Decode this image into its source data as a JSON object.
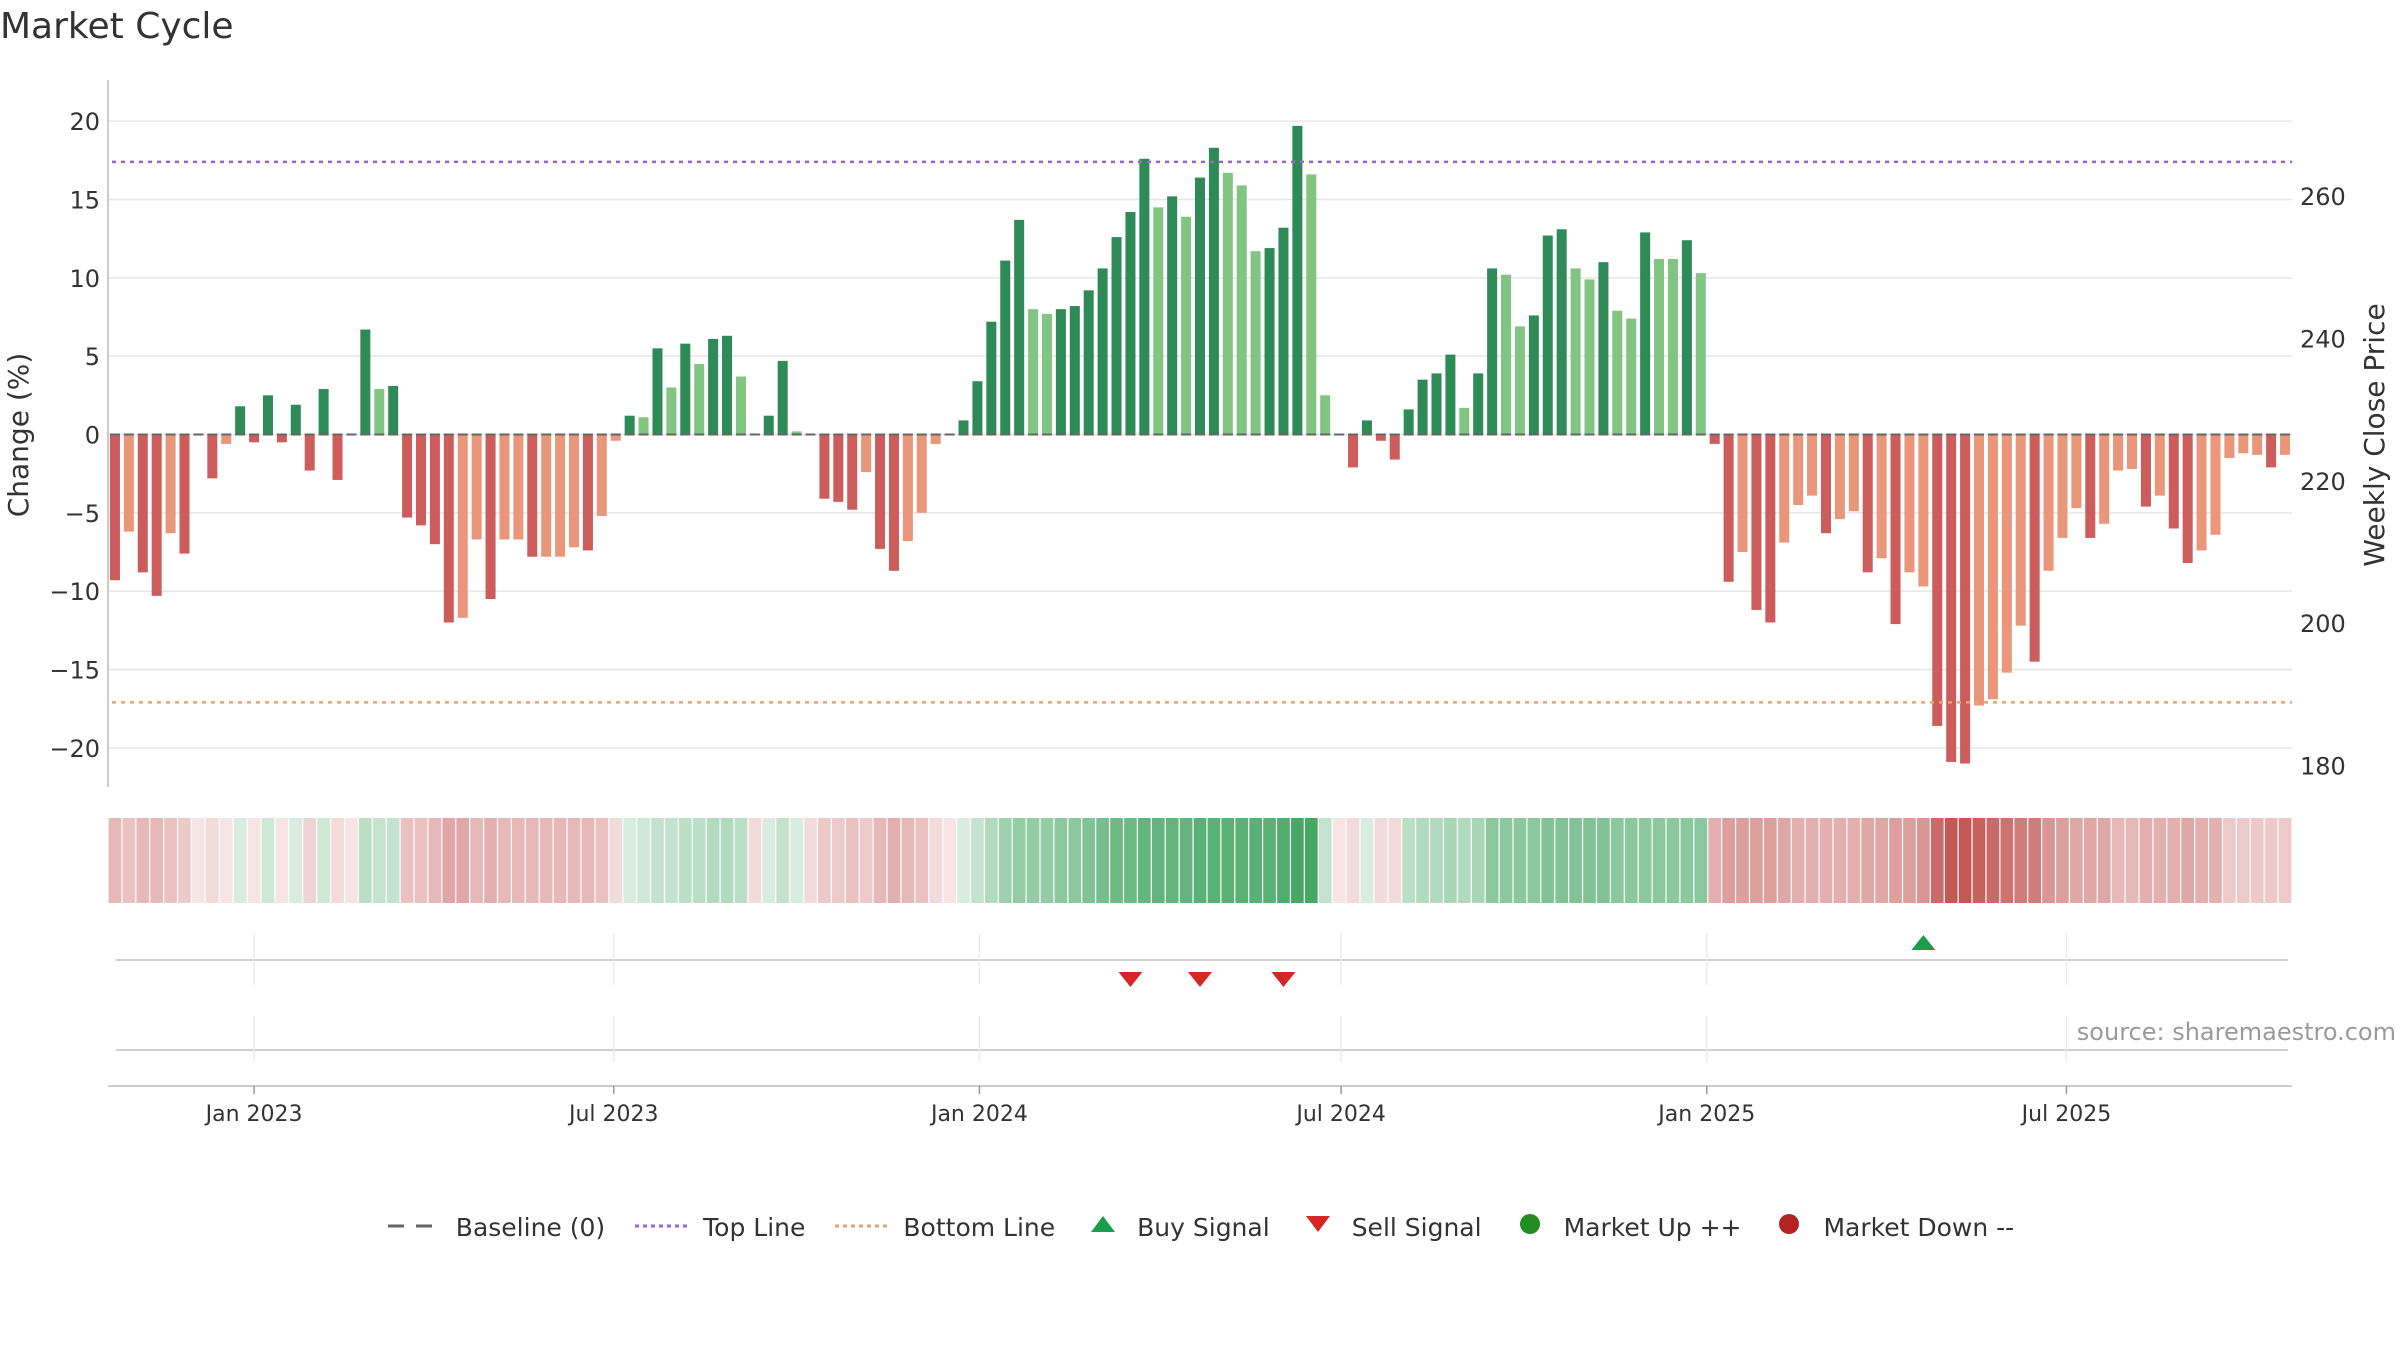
{
  "title": "Market Cycle",
  "source": "source: sharemaestro.com",
  "colors": {
    "dark_green": "#2e8b57",
    "light_green": "#82c482",
    "dark_red": "#cd5c5c",
    "light_red": "#e9967a",
    "top_line": "#9966cc",
    "bottom_line": "#e8a66a",
    "buy": "#1a9e4a",
    "sell": "#d62728",
    "market_up": "#228b22",
    "market_down": "#b22222"
  },
  "legend": [
    {
      "label": "Baseline (0)",
      "icon": "baseline-dash"
    },
    {
      "label": "Top Line",
      "icon": "top-line-dotted"
    },
    {
      "label": "Bottom Line",
      "icon": "bottom-line-dotted"
    },
    {
      "label": "Buy Signal",
      "icon": "triangle-up"
    },
    {
      "label": "Sell Signal",
      "icon": "triangle-down"
    },
    {
      "label": "Market Up ++",
      "icon": "circle-green"
    },
    {
      "label": "Market Down --",
      "icon": "circle-red"
    }
  ],
  "chart_data": {
    "type": "bar",
    "ylabel": "Change (%)",
    "y2label": "Weekly Close Price",
    "ylim": [
      -22.5,
      22.5
    ],
    "yticks": [
      20,
      15,
      10,
      5,
      0,
      -5,
      -10,
      -15,
      -20
    ],
    "ytick_labels": [
      "20",
      "15",
      "10",
      "5",
      "0",
      "−5",
      "−10",
      "−15",
      "−20"
    ],
    "y2ticks": [
      260,
      240,
      220,
      200,
      180
    ],
    "y2lim": [
      177,
      276
    ],
    "top_line": 17.4,
    "bottom_line": -17.1,
    "x_start": "2022-10-23",
    "week_days": 7,
    "xticks": [
      {
        "label": "Jan 2023",
        "date": "2023-01-01"
      },
      {
        "label": "Jul 2023",
        "date": "2023-07-01"
      },
      {
        "label": "Jan 2024",
        "date": "2024-01-01"
      },
      {
        "label": "Jul 2024",
        "date": "2024-07-01"
      },
      {
        "label": "Jan 2025",
        "date": "2025-01-01"
      },
      {
        "label": "Jul 2025",
        "date": "2025-07-01"
      }
    ],
    "grid": true,
    "legend_position": "bottom",
    "values": [
      -9.3,
      -6.2,
      -8.8,
      -10.3,
      -6.3,
      -7.6,
      0,
      -2.8,
      -0.6,
      1.8,
      -0.5,
      2.5,
      -0.5,
      1.9,
      -2.3,
      2.9,
      -2.9,
      0,
      6.7,
      2.9,
      3.1,
      -5.3,
      -5.8,
      -7.0,
      -12.0,
      -11.7,
      -6.7,
      -10.5,
      -6.7,
      -6.7,
      -7.8,
      -7.8,
      -7.8,
      -7.2,
      -7.4,
      -5.2,
      -0.4,
      1.2,
      1.1,
      5.5,
      3.0,
      5.8,
      4.5,
      6.1,
      6.3,
      3.7,
      0,
      1.2,
      4.7,
      0.2,
      0,
      -4.1,
      -4.3,
      -4.8,
      -2.4,
      -7.3,
      -8.7,
      -6.8,
      -5.0,
      -0.6,
      0,
      0.9,
      3.4,
      7.2,
      11.1,
      13.7,
      8.0,
      7.7,
      8.0,
      8.2,
      9.2,
      10.6,
      12.6,
      14.2,
      17.6,
      14.5,
      15.2,
      13.9,
      16.4,
      18.3,
      16.7,
      15.9,
      11.7,
      11.9,
      13.2,
      19.7,
      16.6,
      2.5,
      0,
      -2.1,
      0.9,
      -0.4,
      -1.6,
      1.6,
      3.5,
      3.9,
      5.1,
      1.7,
      3.9,
      10.6,
      10.2,
      6.9,
      7.6,
      12.7,
      13.1,
      10.6,
      9.9,
      11.0,
      7.9,
      7.4,
      12.9,
      11.2,
      11.2,
      12.4,
      10.3,
      -0.6,
      -9.4,
      -7.5,
      -11.2,
      -12.0,
      -6.9,
      -4.5,
      -3.9,
      -6.3,
      -5.4,
      -4.9,
      -8.8,
      -7.9,
      -12.1,
      -8.8,
      -9.7,
      -18.6,
      -20.9,
      -21.0,
      -17.3,
      -16.9,
      -15.2,
      -12.2,
      -14.5,
      -8.7,
      -6.6,
      -4.7,
      -6.6,
      -5.7,
      -2.3,
      -2.2,
      -4.6,
      -3.9,
      -6.0,
      -8.2,
      -7.4,
      -6.4,
      -1.5,
      -1.2,
      -1.3,
      -2.1,
      -1.3
    ],
    "shades": [
      "dr",
      "lr",
      "dr",
      "dr",
      "lr",
      "dr",
      "dr",
      "dr",
      "lr",
      "dg",
      "dr",
      "dg",
      "dr",
      "dg",
      "dr",
      "dg",
      "dr",
      "dr",
      "dg",
      "lg",
      "dg",
      "dr",
      "dr",
      "dr",
      "dr",
      "lr",
      "lr",
      "dr",
      "lr",
      "lr",
      "dr",
      "lr",
      "lr",
      "lr",
      "dr",
      "lr",
      "lr",
      "dg",
      "lg",
      "dg",
      "lg",
      "dg",
      "lg",
      "dg",
      "dg",
      "lg",
      "dr",
      "dg",
      "dg",
      "lg",
      "dr",
      "dr",
      "dr",
      "dr",
      "lr",
      "dr",
      "dr",
      "lr",
      "lr",
      "lr",
      "dr",
      "dg",
      "dg",
      "dg",
      "dg",
      "dg",
      "lg",
      "lg",
      "dg",
      "dg",
      "dg",
      "dg",
      "dg",
      "dg",
      "dg",
      "lg",
      "dg",
      "lg",
      "dg",
      "dg",
      "lg",
      "lg",
      "lg",
      "dg",
      "dg",
      "dg",
      "lg",
      "lg",
      "dr",
      "dr",
      "dg",
      "dr",
      "dr",
      "dg",
      "dg",
      "dg",
      "dg",
      "lg",
      "dg",
      "dg",
      "lg",
      "lg",
      "dg",
      "dg",
      "dg",
      "lg",
      "lg",
      "dg",
      "lg",
      "lg",
      "dg",
      "lg",
      "lg",
      "dg",
      "lg",
      "dr",
      "dr",
      "lr",
      "dr",
      "dr",
      "lr",
      "lr",
      "lr",
      "dr",
      "lr",
      "lr",
      "dr",
      "lr",
      "dr",
      "lr",
      "lr",
      "dr",
      "dr",
      "dr",
      "lr",
      "lr",
      "lr",
      "lr",
      "dr",
      "lr",
      "lr",
      "lr",
      "dr",
      "lr",
      "lr",
      "lr",
      "dr",
      "lr",
      "dr",
      "dr",
      "lr",
      "lr",
      "lr",
      "lr",
      "lr",
      "dr",
      "lr"
    ],
    "heat_band": [
      0.4,
      0.35,
      0.4,
      0.4,
      0.35,
      0.3,
      0.15,
      0.2,
      0.15,
      0.2,
      0.15,
      0.25,
      0.15,
      0.2,
      0.25,
      0.25,
      0.2,
      0.15,
      0.35,
      0.3,
      0.3,
      0.35,
      0.35,
      0.4,
      0.5,
      0.5,
      0.4,
      0.45,
      0.4,
      0.4,
      0.4,
      0.4,
      0.4,
      0.4,
      0.4,
      0.35,
      0.2,
      0.2,
      0.25,
      0.3,
      0.3,
      0.35,
      0.35,
      0.4,
      0.4,
      0.35,
      0.2,
      0.2,
      0.3,
      0.2,
      0.2,
      0.3,
      0.3,
      0.35,
      0.3,
      0.4,
      0.45,
      0.4,
      0.35,
      0.2,
      0.15,
      0.2,
      0.3,
      0.4,
      0.5,
      0.55,
      0.55,
      0.55,
      0.6,
      0.6,
      0.65,
      0.7,
      0.75,
      0.75,
      0.8,
      0.8,
      0.8,
      0.8,
      0.85,
      0.85,
      0.85,
      0.85,
      0.85,
      0.85,
      0.9,
      0.95,
      0.95,
      0.3,
      0.15,
      0.2,
      0.2,
      0.2,
      0.2,
      0.35,
      0.4,
      0.4,
      0.45,
      0.4,
      0.45,
      0.6,
      0.6,
      0.6,
      0.6,
      0.65,
      0.65,
      0.65,
      0.65,
      0.65,
      0.6,
      0.6,
      0.6,
      0.6,
      0.6,
      0.6,
      0.6,
      0.45,
      0.55,
      0.55,
      0.55,
      0.55,
      0.5,
      0.45,
      0.45,
      0.45,
      0.45,
      0.45,
      0.5,
      0.5,
      0.55,
      0.55,
      0.6,
      0.85,
      0.95,
      0.95,
      0.9,
      0.85,
      0.8,
      0.75,
      0.75,
      0.6,
      0.55,
      0.5,
      0.5,
      0.5,
      0.4,
      0.4,
      0.45,
      0.45,
      0.45,
      0.5,
      0.45,
      0.45,
      0.3,
      0.3,
      0.3,
      0.3,
      0.3
    ],
    "buy_signals": [
      130
    ],
    "sell_signals": [
      73,
      78,
      84
    ],
    "market_up": [],
    "market_down": []
  }
}
